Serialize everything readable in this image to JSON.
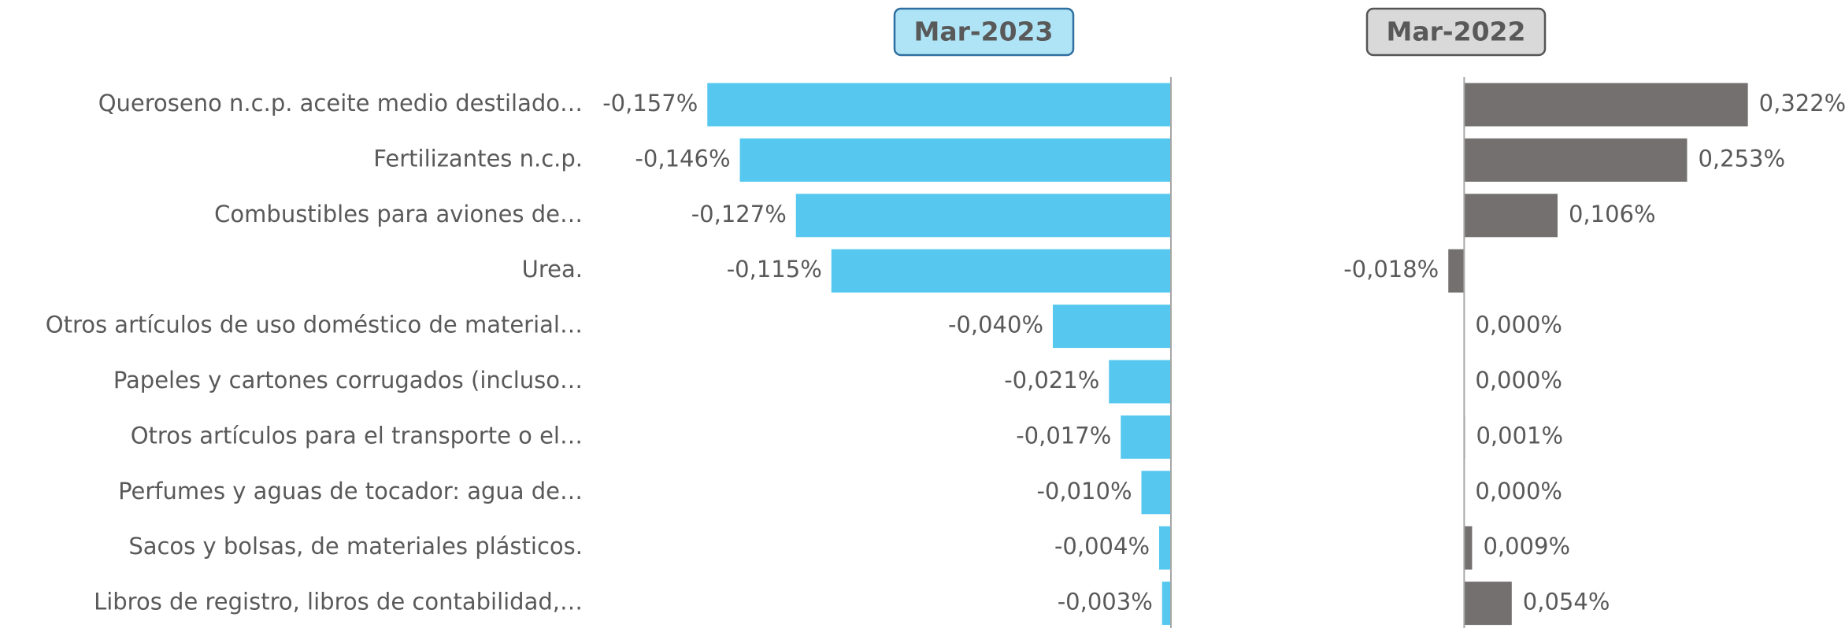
{
  "chart_data": [
    {
      "type": "barh",
      "title": "Mar-2023",
      "categories": [
        "Queroseno n.c.p. aceite medio destilado…",
        "Fertilizantes n.c.p.",
        "Combustibles para aviones de…",
        "Urea.",
        "Otros artículos de uso doméstico de material…",
        "Papeles y cartones corrugados (incluso…",
        "Otros artículos para el transporte o el…",
        "Perfumes y aguas de tocador: agua de…",
        "Sacos y bolsas, de materiales plásticos.",
        "Libros de registro, libros de contabilidad,…"
      ],
      "values": [
        -0.157,
        -0.146,
        -0.127,
        -0.115,
        -0.04,
        -0.021,
        -0.017,
        -0.01,
        -0.004,
        -0.003
      ],
      "value_labels": [
        "-0,157%",
        "-0,146%",
        "-0,127%",
        "-0,115%",
        "-0,040%",
        "-0,021%",
        "-0,017%",
        "-0,010%",
        "-0,004%",
        "-0,003%"
      ],
      "color": "#56c8ef",
      "xlim": [
        -0.16,
        0
      ]
    },
    {
      "type": "barh",
      "title": "Mar-2022",
      "values": [
        0.322,
        0.253,
        0.106,
        -0.018,
        0.0,
        0.0,
        0.001,
        0.0,
        0.009,
        0.054
      ],
      "value_labels": [
        "0,322%",
        "0,253%",
        "0,106%",
        "-0,018%",
        "0,000%",
        "0,000%",
        "0,001%",
        "0,000%",
        "0,009%",
        "0,054%"
      ],
      "color": "#747070",
      "xlim": [
        -0.02,
        0.35
      ]
    }
  ]
}
